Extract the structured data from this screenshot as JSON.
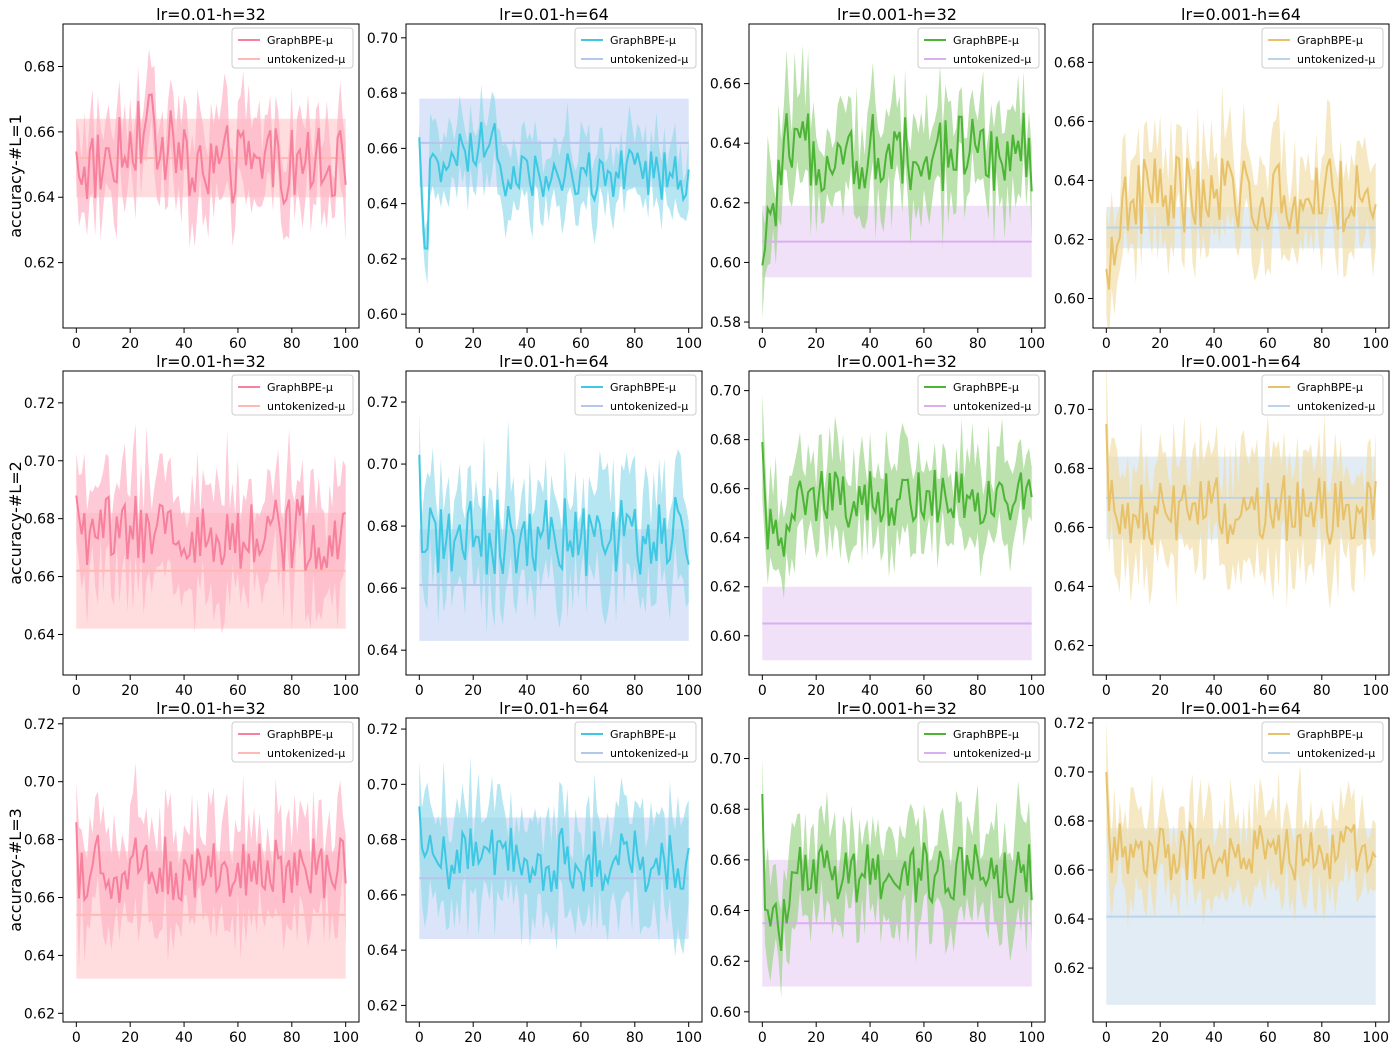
{
  "chart_data": {
    "type": "line",
    "layout": "3 rows x 4 columns grid of line charts with shaded std bands",
    "x_range": [
      0,
      100
    ],
    "x_ticks": [
      "0",
      "20",
      "40",
      "60",
      "80",
      "100"
    ],
    "column_titles": [
      "lr=0.01-h=32",
      "lr=0.01-h=64",
      "lr=0.001-h=32",
      "lr=0.001-h=64"
    ],
    "row_labels": [
      "accuracy-#L=1",
      "accuracy-#L=2",
      "accuracy-#L=3"
    ],
    "legend": [
      "GraphBPE-μ",
      "untokenized-μ"
    ],
    "colors": {
      "col0": {
        "line": "#f7819c",
        "band": "#ffb3c6",
        "base": "#ffb8b3",
        "baseband": "#ffb9bc"
      },
      "col1": {
        "line": "#3fc8e3",
        "band": "#96dbeb",
        "base": "#b4c6ec",
        "baseband": "#b7c9f1"
      },
      "col2": {
        "line": "#4cb535",
        "band": "#9ed48a",
        "base": "#dbaef0",
        "baseband": "#e4c3f1"
      },
      "col3": {
        "line": "#e8c26a",
        "band": "#f1dea8",
        "base": "#bcd4e9",
        "baseband": "#c6d9ea"
      }
    },
    "panels": [
      {
        "row": 0,
        "col": 0,
        "title": "lr=0.01-h=32",
        "ylim": [
          0.6,
          0.693
        ],
        "yticks": [
          0.62,
          0.64,
          0.66,
          0.68
        ],
        "graphbpe": {
          "start": 0.654,
          "mean": 0.65,
          "noise": 0.01,
          "band": 0.012,
          "shape": "hump"
        },
        "untokenized": {
          "mean": 0.652,
          "std": 0.012
        }
      },
      {
        "row": 0,
        "col": 1,
        "title": "lr=0.01-h=64",
        "ylim": [
          0.595,
          0.705
        ],
        "yticks": [
          0.6,
          0.62,
          0.64,
          0.66,
          0.68,
          0.7
        ],
        "graphbpe": {
          "start": 0.664,
          "mean": 0.65,
          "noise": 0.008,
          "band": 0.011,
          "shape": "rise"
        },
        "untokenized": {
          "mean": 0.662,
          "std": 0.016
        }
      },
      {
        "row": 0,
        "col": 2,
        "title": "lr=0.001-h=32",
        "ylim": [
          0.578,
          0.68
        ],
        "yticks": [
          0.58,
          0.6,
          0.62,
          0.64,
          0.66
        ],
        "graphbpe": {
          "start": 0.599,
          "mean": 0.637,
          "noise": 0.011,
          "band": 0.014,
          "shape": "warm"
        },
        "untokenized": {
          "mean": 0.607,
          "std": 0.012
        }
      },
      {
        "row": 0,
        "col": 3,
        "title": "lr=0.001-h=64",
        "ylim": [
          0.59,
          0.693
        ],
        "yticks": [
          0.6,
          0.62,
          0.64,
          0.66,
          0.68
        ],
        "graphbpe": {
          "start": 0.61,
          "mean": 0.635,
          "noise": 0.011,
          "band": 0.014,
          "shape": "warm"
        },
        "untokenized": {
          "mean": 0.624,
          "std": 0.007
        }
      },
      {
        "row": 1,
        "col": 0,
        "title": "lr=0.01-h=32",
        "ylim": [
          0.626,
          0.731
        ],
        "yticks": [
          0.64,
          0.66,
          0.68,
          0.7,
          0.72
        ],
        "graphbpe": {
          "start": 0.688,
          "mean": 0.675,
          "noise": 0.011,
          "band": 0.017,
          "shape": "flat"
        },
        "untokenized": {
          "mean": 0.662,
          "std": 0.02
        }
      },
      {
        "row": 1,
        "col": 1,
        "title": "lr=0.01-h=64",
        "ylim": [
          0.632,
          0.73
        ],
        "yticks": [
          0.64,
          0.66,
          0.68,
          0.7,
          0.72
        ],
        "graphbpe": {
          "start": 0.703,
          "mean": 0.677,
          "noise": 0.011,
          "band": 0.016,
          "shape": "flat"
        },
        "untokenized": {
          "mean": 0.661,
          "std": 0.018
        }
      },
      {
        "row": 1,
        "col": 2,
        "title": "lr=0.001-h=32",
        "ylim": [
          0.584,
          0.708
        ],
        "yticks": [
          0.6,
          0.62,
          0.64,
          0.66,
          0.68,
          0.7
        ],
        "graphbpe": {
          "start": 0.679,
          "mean": 0.656,
          "noise": 0.01,
          "band": 0.016,
          "shape": "dip"
        },
        "untokenized": {
          "mean": 0.605,
          "std": 0.015
        }
      },
      {
        "row": 1,
        "col": 3,
        "title": "lr=0.001-h=64",
        "ylim": [
          0.61,
          0.713
        ],
        "yticks": [
          0.62,
          0.64,
          0.66,
          0.68,
          0.7
        ],
        "graphbpe": {
          "start": 0.695,
          "mean": 0.666,
          "noise": 0.01,
          "band": 0.017,
          "shape": "flat"
        },
        "untokenized": {
          "mean": 0.67,
          "std": 0.014
        }
      },
      {
        "row": 2,
        "col": 0,
        "title": "lr=0.01-h=32",
        "ylim": [
          0.617,
          0.722
        ],
        "yticks": [
          0.62,
          0.64,
          0.66,
          0.68,
          0.7,
          0.72
        ],
        "graphbpe": {
          "start": 0.686,
          "mean": 0.67,
          "noise": 0.01,
          "band": 0.017,
          "shape": "flat"
        },
        "untokenized": {
          "mean": 0.654,
          "std": 0.022
        }
      },
      {
        "row": 2,
        "col": 1,
        "title": "lr=0.01-h=64",
        "ylim": [
          0.614,
          0.724
        ],
        "yticks": [
          0.62,
          0.64,
          0.66,
          0.68,
          0.7,
          0.72
        ],
        "graphbpe": {
          "start": 0.692,
          "mean": 0.673,
          "noise": 0.01,
          "band": 0.018,
          "shape": "flat"
        },
        "untokenized": {
          "mean": 0.666,
          "std": 0.022
        }
      },
      {
        "row": 2,
        "col": 2,
        "title": "lr=0.001-h=32",
        "ylim": [
          0.596,
          0.716
        ],
        "yticks": [
          0.6,
          0.62,
          0.64,
          0.66,
          0.68,
          0.7
        ],
        "graphbpe": {
          "start": 0.686,
          "mean": 0.655,
          "noise": 0.01,
          "band": 0.017,
          "shape": "dip"
        },
        "untokenized": {
          "mean": 0.635,
          "std": 0.025
        }
      },
      {
        "row": 2,
        "col": 3,
        "title": "lr=0.001-h=64",
        "ylim": [
          0.598,
          0.722
        ],
        "yticks": [
          0.62,
          0.64,
          0.66,
          0.68,
          0.7,
          0.72
        ],
        "graphbpe": {
          "start": 0.7,
          "mean": 0.667,
          "noise": 0.01,
          "band": 0.016,
          "shape": "flat"
        },
        "untokenized": {
          "mean": 0.641,
          "std": 0.036
        }
      }
    ]
  }
}
